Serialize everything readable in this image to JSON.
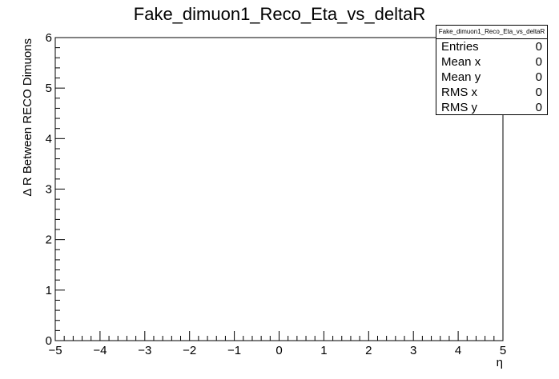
{
  "chart_data": {
    "type": "scatter",
    "title": "Fake_dimuon1_Reco_Eta_vs_deltaR",
    "xlabel": "η",
    "ylabel": "Δ R Between RECO Dimuons",
    "xlim": [
      -5,
      5
    ],
    "ylim": [
      0,
      6
    ],
    "x_ticks": [
      "−5",
      "−4",
      "−3",
      "−2",
      "−1",
      "0",
      "1",
      "2",
      "3",
      "4",
      "5"
    ],
    "y_ticks": [
      "0",
      "1",
      "2",
      "3",
      "4",
      "5",
      "6"
    ],
    "points": [],
    "grid": false
  },
  "stats": {
    "title": "Fake_dimuon1_Reco_Eta_vs_deltaR",
    "rows": [
      {
        "label": "Entries",
        "value": "0"
      },
      {
        "label": "Mean x",
        "value": "0"
      },
      {
        "label": "Mean y",
        "value": "0"
      },
      {
        "label": "RMS x",
        "value": "0"
      },
      {
        "label": "RMS y",
        "value": "0"
      }
    ]
  }
}
